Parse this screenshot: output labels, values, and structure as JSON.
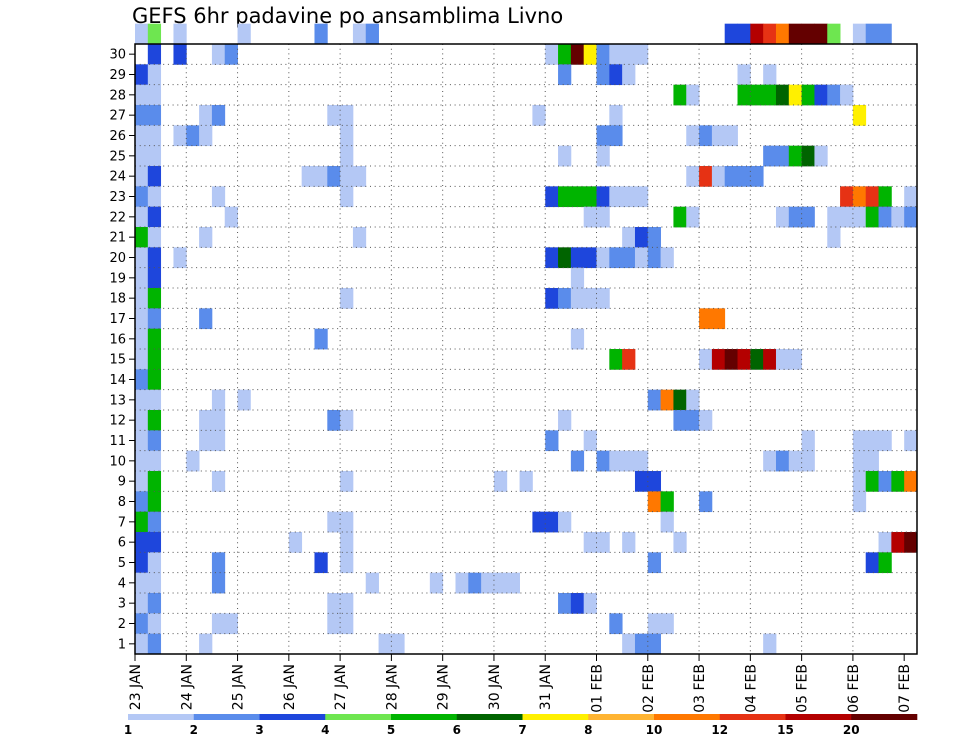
{
  "chart_data": {
    "type": "heatmap",
    "title": "GEFS 6hr padavine po ansamblima Livno",
    "xlabel": "",
    "ylabel": "",
    "x_ticks": [
      "23 JAN",
      "24 JAN",
      "25 JAN",
      "26 JAN",
      "27 JAN",
      "28 JAN",
      "29 JAN",
      "30 JAN",
      "31 JAN",
      "01 FEB",
      "02 FEB",
      "03 FEB",
      "04 FEB",
      "05 FEB",
      "06 FEB",
      "07 FEB"
    ],
    "y_ticks": [
      1,
      2,
      3,
      4,
      5,
      6,
      7,
      8,
      9,
      10,
      11,
      12,
      13,
      14,
      15,
      16,
      17,
      18,
      19,
      20,
      21,
      22,
      23,
      24,
      25,
      26,
      27,
      28,
      29,
      30
    ],
    "x_steps": 61,
    "ylim": [
      0,
      30
    ],
    "grid": true,
    "colorbar": {
      "labels": [
        "1",
        "2",
        "3",
        "4",
        "5",
        "6",
        "7",
        "8",
        "10",
        "12",
        "15",
        "20"
      ],
      "colors": [
        "#b4c8f5",
        "#5a8ceb",
        "#1e46dc",
        "#6ee650",
        "#00b400",
        "#006400",
        "#fff000",
        "#ffb432",
        "#ff7800",
        "#e63214",
        "#b40000",
        "#640000"
      ],
      "bounds": [
        1,
        2,
        3,
        4,
        5,
        6,
        7,
        8,
        10,
        12,
        15,
        20,
        25
      ]
    },
    "cells": [
      [
        30,
        0,
        1
      ],
      [
        30,
        1,
        4
      ],
      [
        30,
        3,
        1
      ],
      [
        30,
        8,
        1
      ],
      [
        30,
        14,
        2
      ],
      [
        30,
        17,
        1
      ],
      [
        30,
        18,
        2
      ],
      [
        30,
        46,
        3
      ],
      [
        30,
        47,
        3
      ],
      [
        30,
        48,
        11
      ],
      [
        30,
        49,
        10
      ],
      [
        30,
        50,
        9
      ],
      [
        30,
        51,
        12
      ],
      [
        30,
        52,
        12
      ],
      [
        30,
        53,
        12
      ],
      [
        30,
        54,
        4
      ],
      [
        30,
        56,
        1
      ],
      [
        30,
        57,
        2
      ],
      [
        30,
        58,
        2
      ],
      [
        29,
        1,
        3
      ],
      [
        29,
        3,
        3
      ],
      [
        29,
        6,
        1
      ],
      [
        29,
        7,
        2
      ],
      [
        29,
        32,
        1
      ],
      [
        29,
        33,
        5
      ],
      [
        29,
        34,
        12
      ],
      [
        29,
        35,
        7
      ],
      [
        29,
        36,
        2
      ],
      [
        29,
        37,
        1
      ],
      [
        29,
        38,
        1
      ],
      [
        29,
        39,
        1
      ],
      [
        28,
        0,
        3
      ],
      [
        28,
        1,
        1
      ],
      [
        28,
        33,
        2
      ],
      [
        28,
        36,
        2
      ],
      [
        28,
        37,
        3
      ],
      [
        28,
        38,
        1
      ],
      [
        28,
        47,
        1
      ],
      [
        28,
        49,
        1
      ],
      [
        27,
        0,
        1
      ],
      [
        27,
        1,
        1
      ],
      [
        27,
        42,
        5
      ],
      [
        27,
        43,
        1
      ],
      [
        27,
        47,
        5
      ],
      [
        27,
        48,
        5
      ],
      [
        27,
        49,
        5
      ],
      [
        27,
        50,
        6
      ],
      [
        27,
        51,
        7
      ],
      [
        27,
        52,
        5
      ],
      [
        27,
        53,
        3
      ],
      [
        27,
        54,
        2
      ],
      [
        27,
        55,
        1
      ],
      [
        26,
        0,
        2
      ],
      [
        26,
        1,
        2
      ],
      [
        26,
        5,
        1
      ],
      [
        26,
        6,
        2
      ],
      [
        26,
        15,
        1
      ],
      [
        26,
        16,
        1
      ],
      [
        26,
        31,
        1
      ],
      [
        26,
        37,
        1
      ],
      [
        26,
        56,
        7
      ],
      [
        25,
        0,
        1
      ],
      [
        25,
        1,
        1
      ],
      [
        25,
        3,
        1
      ],
      [
        25,
        4,
        2
      ],
      [
        25,
        5,
        1
      ],
      [
        25,
        16,
        1
      ],
      [
        25,
        36,
        2
      ],
      [
        25,
        37,
        2
      ],
      [
        25,
        43,
        1
      ],
      [
        25,
        44,
        2
      ],
      [
        25,
        45,
        1
      ],
      [
        25,
        46,
        1
      ],
      [
        24,
        0,
        1
      ],
      [
        24,
        1,
        1
      ],
      [
        24,
        16,
        1
      ],
      [
        24,
        33,
        1
      ],
      [
        24,
        36,
        1
      ],
      [
        24,
        49,
        2
      ],
      [
        24,
        50,
        2
      ],
      [
        24,
        51,
        5
      ],
      [
        24,
        52,
        6
      ],
      [
        24,
        53,
        1
      ],
      [
        23,
        0,
        1
      ],
      [
        23,
        1,
        3
      ],
      [
        23,
        13,
        1
      ],
      [
        23,
        14,
        1
      ],
      [
        23,
        15,
        2
      ],
      [
        23,
        16,
        1
      ],
      [
        23,
        17,
        1
      ],
      [
        23,
        43,
        1
      ],
      [
        23,
        44,
        10
      ],
      [
        23,
        45,
        1
      ],
      [
        23,
        46,
        2
      ],
      [
        23,
        47,
        2
      ],
      [
        23,
        48,
        2
      ],
      [
        22,
        0,
        2
      ],
      [
        22,
        1,
        1
      ],
      [
        22,
        6,
        1
      ],
      [
        22,
        16,
        1
      ],
      [
        22,
        32,
        3
      ],
      [
        22,
        33,
        5
      ],
      [
        22,
        34,
        5
      ],
      [
        22,
        35,
        5
      ],
      [
        22,
        36,
        3
      ],
      [
        22,
        37,
        1
      ],
      [
        22,
        38,
        1
      ],
      [
        22,
        39,
        1
      ],
      [
        22,
        55,
        10
      ],
      [
        22,
        56,
        9
      ],
      [
        22,
        57,
        10
      ],
      [
        22,
        58,
        5
      ],
      [
        22,
        60,
        1
      ],
      [
        21,
        0,
        1
      ],
      [
        21,
        1,
        3
      ],
      [
        21,
        7,
        1
      ],
      [
        21,
        35,
        1
      ],
      [
        21,
        36,
        1
      ],
      [
        21,
        42,
        5
      ],
      [
        21,
        43,
        1
      ],
      [
        21,
        50,
        1
      ],
      [
        21,
        51,
        2
      ],
      [
        21,
        52,
        2
      ],
      [
        21,
        54,
        1
      ],
      [
        21,
        55,
        1
      ],
      [
        21,
        56,
        1
      ],
      [
        21,
        57,
        5
      ],
      [
        21,
        58,
        2
      ],
      [
        21,
        59,
        1
      ],
      [
        21,
        60,
        2
      ],
      [
        20,
        0,
        5
      ],
      [
        20,
        1,
        1
      ],
      [
        20,
        5,
        1
      ],
      [
        20,
        17,
        1
      ],
      [
        20,
        38,
        1
      ],
      [
        20,
        39,
        3
      ],
      [
        20,
        40,
        2
      ],
      [
        20,
        54,
        1
      ],
      [
        19,
        0,
        1
      ],
      [
        19,
        1,
        3
      ],
      [
        19,
        3,
        1
      ],
      [
        19,
        32,
        3
      ],
      [
        19,
        33,
        6
      ],
      [
        19,
        34,
        3
      ],
      [
        19,
        35,
        3
      ],
      [
        19,
        36,
        1
      ],
      [
        19,
        37,
        2
      ],
      [
        19,
        38,
        2
      ],
      [
        19,
        39,
        1
      ],
      [
        19,
        40,
        2
      ],
      [
        19,
        41,
        1
      ],
      [
        18,
        0,
        1
      ],
      [
        18,
        1,
        3
      ],
      [
        18,
        34,
        1
      ],
      [
        17,
        0,
        1
      ],
      [
        17,
        1,
        5
      ],
      [
        17,
        16,
        1
      ],
      [
        17,
        32,
        3
      ],
      [
        17,
        33,
        2
      ],
      [
        17,
        34,
        1
      ],
      [
        17,
        35,
        1
      ],
      [
        17,
        36,
        1
      ],
      [
        16,
        0,
        1
      ],
      [
        16,
        1,
        2
      ],
      [
        16,
        5,
        2
      ],
      [
        16,
        44,
        9
      ],
      [
        16,
        45,
        9
      ],
      [
        15,
        0,
        1
      ],
      [
        15,
        1,
        5
      ],
      [
        15,
        14,
        2
      ],
      [
        15,
        34,
        1
      ],
      [
        14,
        0,
        1
      ],
      [
        14,
        1,
        5
      ],
      [
        14,
        37,
        5
      ],
      [
        14,
        38,
        10
      ],
      [
        14,
        44,
        1
      ],
      [
        14,
        45,
        11
      ],
      [
        14,
        46,
        12
      ],
      [
        14,
        47,
        11
      ],
      [
        14,
        48,
        6
      ],
      [
        14,
        49,
        11
      ],
      [
        14,
        50,
        1
      ],
      [
        14,
        51,
        1
      ],
      [
        13,
        0,
        2
      ],
      [
        13,
        1,
        5
      ],
      [
        12,
        0,
        1
      ],
      [
        12,
        1,
        1
      ],
      [
        12,
        6,
        1
      ],
      [
        12,
        8,
        1
      ],
      [
        12,
        40,
        2
      ],
      [
        12,
        41,
        9
      ],
      [
        12,
        42,
        6
      ],
      [
        12,
        43,
        1
      ],
      [
        11,
        0,
        1
      ],
      [
        11,
        1,
        5
      ],
      [
        11,
        5,
        1
      ],
      [
        11,
        6,
        1
      ],
      [
        11,
        15,
        2
      ],
      [
        11,
        16,
        1
      ],
      [
        11,
        33,
        1
      ],
      [
        11,
        42,
        2
      ],
      [
        11,
        43,
        2
      ],
      [
        11,
        44,
        1
      ],
      [
        10,
        0,
        1
      ],
      [
        10,
        1,
        2
      ],
      [
        10,
        5,
        1
      ],
      [
        10,
        6,
        1
      ],
      [
        10,
        32,
        2
      ],
      [
        10,
        35,
        1
      ],
      [
        10,
        52,
        1
      ],
      [
        10,
        56,
        1
      ],
      [
        10,
        57,
        1
      ],
      [
        10,
        58,
        1
      ],
      [
        10,
        60,
        1
      ],
      [
        9,
        0,
        1
      ],
      [
        9,
        1,
        1
      ],
      [
        9,
        4,
        1
      ],
      [
        9,
        34,
        2
      ],
      [
        9,
        36,
        2
      ],
      [
        9,
        37,
        1
      ],
      [
        9,
        38,
        1
      ],
      [
        9,
        39,
        1
      ],
      [
        9,
        49,
        1
      ],
      [
        9,
        50,
        2
      ],
      [
        9,
        51,
        1
      ],
      [
        9,
        52,
        1
      ],
      [
        9,
        56,
        1
      ],
      [
        9,
        57,
        1
      ],
      [
        8,
        0,
        1
      ],
      [
        8,
        1,
        5
      ],
      [
        8,
        6,
        1
      ],
      [
        8,
        16,
        1
      ],
      [
        8,
        28,
        1
      ],
      [
        8,
        30,
        1
      ],
      [
        8,
        39,
        3
      ],
      [
        8,
        40,
        3
      ],
      [
        8,
        56,
        1
      ],
      [
        8,
        57,
        5
      ],
      [
        8,
        58,
        2
      ],
      [
        8,
        59,
        5
      ],
      [
        8,
        60,
        9
      ],
      [
        7,
        0,
        2
      ],
      [
        7,
        1,
        5
      ],
      [
        7,
        40,
        9
      ],
      [
        7,
        41,
        5
      ],
      [
        7,
        44,
        2
      ],
      [
        7,
        56,
        1
      ],
      [
        6,
        0,
        5
      ],
      [
        6,
        1,
        2
      ],
      [
        6,
        15,
        1
      ],
      [
        6,
        16,
        1
      ],
      [
        6,
        31,
        3
      ],
      [
        6,
        32,
        3
      ],
      [
        6,
        33,
        1
      ],
      [
        6,
        41,
        1
      ],
      [
        5,
        0,
        3
      ],
      [
        5,
        1,
        3
      ],
      [
        5,
        12,
        1
      ],
      [
        5,
        16,
        1
      ],
      [
        5,
        35,
        1
      ],
      [
        5,
        36,
        1
      ],
      [
        5,
        38,
        1
      ],
      [
        5,
        42,
        1
      ],
      [
        5,
        58,
        1
      ],
      [
        5,
        59,
        11
      ],
      [
        5,
        60,
        12
      ],
      [
        4,
        0,
        3
      ],
      [
        4,
        1,
        1
      ],
      [
        4,
        6,
        2
      ],
      [
        4,
        14,
        3
      ],
      [
        4,
        16,
        1
      ],
      [
        4,
        40,
        2
      ],
      [
        4,
        57,
        3
      ],
      [
        4,
        58,
        5
      ],
      [
        3,
        0,
        1
      ],
      [
        3,
        1,
        1
      ],
      [
        3,
        6,
        2
      ],
      [
        3,
        18,
        1
      ],
      [
        3,
        23,
        1
      ],
      [
        3,
        25,
        1
      ],
      [
        3,
        26,
        2
      ],
      [
        3,
        27,
        1
      ],
      [
        3,
        28,
        1
      ],
      [
        3,
        29,
        1
      ],
      [
        2,
        0,
        1
      ],
      [
        2,
        1,
        2
      ],
      [
        2,
        15,
        1
      ],
      [
        2,
        16,
        1
      ],
      [
        2,
        33,
        2
      ],
      [
        2,
        34,
        3
      ],
      [
        2,
        35,
        1
      ],
      [
        1,
        0,
        2
      ],
      [
        1,
        1,
        1
      ],
      [
        1,
        6,
        1
      ],
      [
        1,
        7,
        1
      ],
      [
        1,
        15,
        1
      ],
      [
        1,
        16,
        1
      ],
      [
        1,
        37,
        2
      ],
      [
        1,
        40,
        1
      ],
      [
        1,
        41,
        1
      ],
      [
        0,
        0,
        1
      ],
      [
        0,
        1,
        2
      ],
      [
        0,
        5,
        1
      ],
      [
        0,
        19,
        1
      ],
      [
        0,
        20,
        1
      ],
      [
        0,
        38,
        1
      ],
      [
        0,
        39,
        2
      ],
      [
        0,
        40,
        2
      ],
      [
        0,
        49,
        1
      ]
    ]
  }
}
